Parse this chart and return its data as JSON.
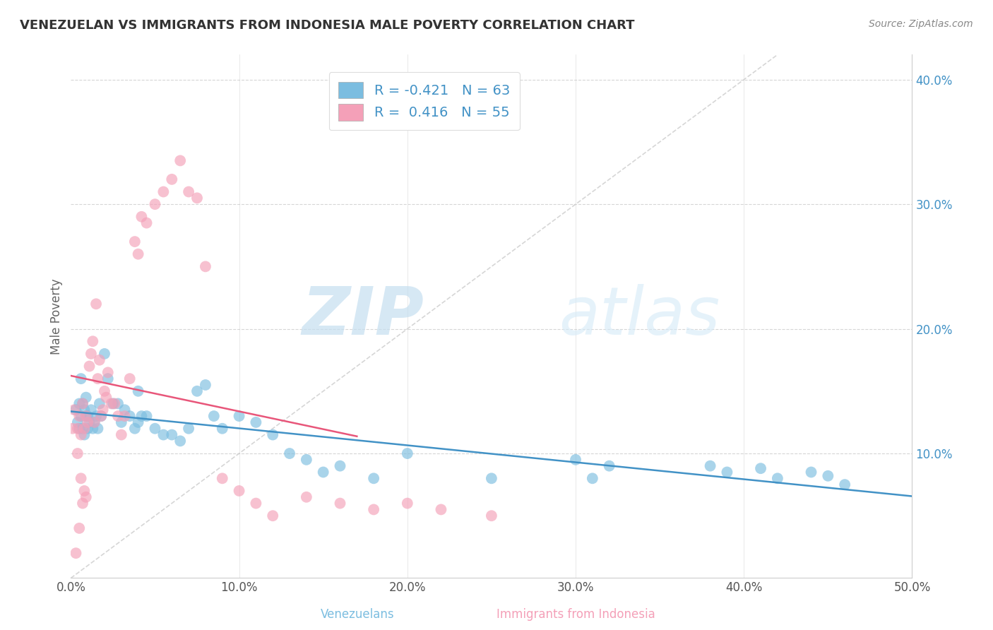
{
  "title": "VENEZUELAN VS IMMIGRANTS FROM INDONESIA MALE POVERTY CORRELATION CHART",
  "source": "Source: ZipAtlas.com",
  "xlabel_venezuelans": "Venezuelans",
  "xlabel_indonesia": "Immigrants from Indonesia",
  "ylabel": "Male Poverty",
  "xlim": [
    0.0,
    0.5
  ],
  "ylim": [
    0.0,
    0.42
  ],
  "xticks": [
    0.0,
    0.1,
    0.2,
    0.3,
    0.4,
    0.5
  ],
  "yticks": [
    0.1,
    0.2,
    0.3,
    0.4
  ],
  "xtick_labels": [
    "0.0%",
    "10.0%",
    "20.0%",
    "30.0%",
    "40.0%",
    "50.0%"
  ],
  "ytick_labels": [
    "10.0%",
    "20.0%",
    "30.0%",
    "40.0%"
  ],
  "blue_R": -0.421,
  "blue_N": 63,
  "pink_R": 0.416,
  "pink_N": 55,
  "blue_scatter_color": "#7bbde0",
  "pink_scatter_color": "#f4a0b8",
  "blue_line_color": "#4292c6",
  "pink_line_color": "#e8567a",
  "diag_line_color": "#cccccc",
  "watermark_color": "#c8dff0",
  "legend_label_color": "#4292c6",
  "ytick_color": "#4292c6",
  "xtick_color": "#555555",
  "title_color": "#333333",
  "source_color": "#888888",
  "grid_color": "#cccccc",
  "blue_scatter_x": [
    0.003,
    0.004,
    0.005,
    0.005,
    0.006,
    0.006,
    0.007,
    0.007,
    0.008,
    0.008,
    0.009,
    0.009,
    0.01,
    0.01,
    0.011,
    0.012,
    0.013,
    0.014,
    0.015,
    0.016,
    0.017,
    0.018,
    0.02,
    0.022,
    0.025,
    0.028,
    0.03,
    0.032,
    0.035,
    0.038,
    0.04,
    0.04,
    0.042,
    0.045,
    0.05,
    0.055,
    0.06,
    0.065,
    0.07,
    0.075,
    0.08,
    0.085,
    0.09,
    0.1,
    0.11,
    0.12,
    0.13,
    0.14,
    0.15,
    0.16,
    0.18,
    0.2,
    0.25,
    0.3,
    0.31,
    0.32,
    0.38,
    0.39,
    0.41,
    0.42,
    0.44,
    0.45,
    0.46
  ],
  "blue_scatter_y": [
    0.135,
    0.125,
    0.12,
    0.14,
    0.13,
    0.16,
    0.12,
    0.14,
    0.115,
    0.135,
    0.13,
    0.145,
    0.12,
    0.13,
    0.125,
    0.135,
    0.12,
    0.125,
    0.13,
    0.12,
    0.14,
    0.13,
    0.18,
    0.16,
    0.14,
    0.14,
    0.125,
    0.135,
    0.13,
    0.12,
    0.15,
    0.125,
    0.13,
    0.13,
    0.12,
    0.115,
    0.115,
    0.11,
    0.12,
    0.15,
    0.155,
    0.13,
    0.12,
    0.13,
    0.125,
    0.115,
    0.1,
    0.095,
    0.085,
    0.09,
    0.08,
    0.1,
    0.08,
    0.095,
    0.08,
    0.09,
    0.09,
    0.085,
    0.088,
    0.08,
    0.085,
    0.082,
    0.075
  ],
  "pink_scatter_x": [
    0.001,
    0.002,
    0.003,
    0.004,
    0.004,
    0.005,
    0.005,
    0.006,
    0.006,
    0.007,
    0.007,
    0.008,
    0.008,
    0.009,
    0.009,
    0.01,
    0.011,
    0.012,
    0.013,
    0.014,
    0.015,
    0.016,
    0.017,
    0.018,
    0.019,
    0.02,
    0.021,
    0.022,
    0.024,
    0.026,
    0.028,
    0.03,
    0.032,
    0.035,
    0.038,
    0.04,
    0.042,
    0.045,
    0.05,
    0.055,
    0.06,
    0.065,
    0.07,
    0.075,
    0.08,
    0.09,
    0.1,
    0.11,
    0.12,
    0.14,
    0.16,
    0.18,
    0.2,
    0.22,
    0.25
  ],
  "pink_scatter_y": [
    0.12,
    0.135,
    0.02,
    0.12,
    0.1,
    0.13,
    0.04,
    0.115,
    0.08,
    0.14,
    0.06,
    0.12,
    0.07,
    0.13,
    0.065,
    0.125,
    0.17,
    0.18,
    0.19,
    0.125,
    0.22,
    0.16,
    0.175,
    0.13,
    0.135,
    0.15,
    0.145,
    0.165,
    0.14,
    0.14,
    0.13,
    0.115,
    0.13,
    0.16,
    0.27,
    0.26,
    0.29,
    0.285,
    0.3,
    0.31,
    0.32,
    0.335,
    0.31,
    0.305,
    0.25,
    0.08,
    0.07,
    0.06,
    0.05,
    0.065,
    0.06,
    0.055,
    0.06,
    0.055,
    0.05
  ]
}
